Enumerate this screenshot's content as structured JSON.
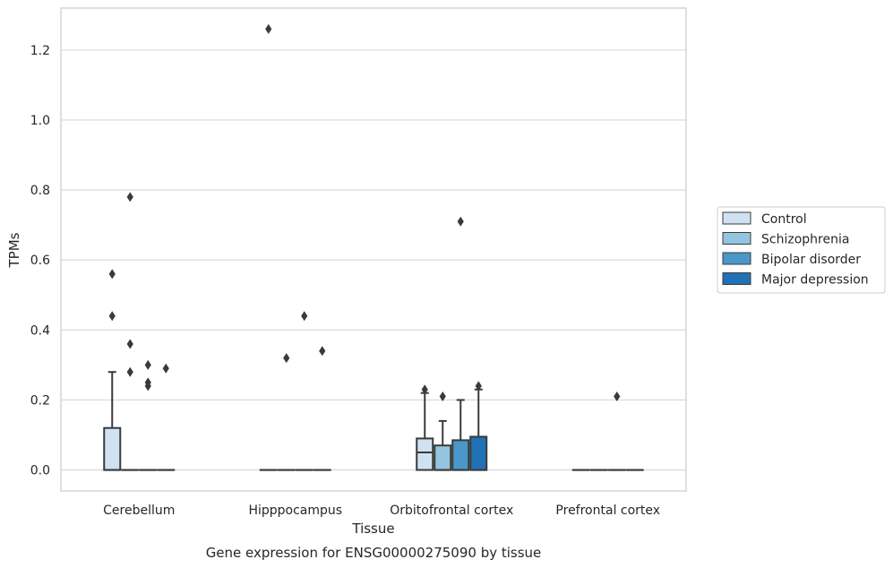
{
  "caption": "Gene expression for ENSG00000275090 by tissue",
  "chart_data": {
    "type": "box",
    "xlabel": "Tissue",
    "ylabel": "TPMs",
    "ylim": [
      -0.06,
      1.32
    ],
    "yticks": [
      0.0,
      0.2,
      0.4,
      0.6,
      0.8,
      1.0,
      1.2
    ],
    "ytick_labels": [
      "0.0",
      "0.2",
      "0.4",
      "0.6",
      "0.8",
      "1.0",
      "1.2"
    ],
    "grid": "horizontal",
    "legend_position": "right",
    "categories": [
      "Cerebellum",
      "Hipppocampus",
      "Orbitofrontal cortex",
      "Prefrontal cortex"
    ],
    "series": [
      {
        "name": "Control",
        "color": "#d0e1f2",
        "boxes": [
          {
            "q1": 0.0,
            "median": 0.0,
            "q3": 0.12,
            "whisker_low": 0.0,
            "whisker_high": 0.28,
            "outliers": [
              0.44,
              0.56
            ]
          },
          {
            "q1": 0.0,
            "median": 0.0,
            "q3": 0.0,
            "whisker_low": 0.0,
            "whisker_high": 0.0,
            "outliers": [
              1.26
            ]
          },
          {
            "q1": 0.0,
            "median": 0.05,
            "q3": 0.09,
            "whisker_low": 0.0,
            "whisker_high": 0.22,
            "outliers": [
              0.23
            ]
          },
          {
            "q1": 0.0,
            "median": 0.0,
            "q3": 0.0,
            "whisker_low": 0.0,
            "whisker_high": 0.0,
            "outliers": []
          }
        ]
      },
      {
        "name": "Schizophrenia",
        "color": "#94c4df",
        "boxes": [
          {
            "q1": 0.0,
            "median": 0.0,
            "q3": 0.0,
            "whisker_low": 0.0,
            "whisker_high": 0.0,
            "outliers": [
              0.28,
              0.36,
              0.78
            ]
          },
          {
            "q1": 0.0,
            "median": 0.0,
            "q3": 0.0,
            "whisker_low": 0.0,
            "whisker_high": 0.0,
            "outliers": [
              0.32
            ]
          },
          {
            "q1": 0.0,
            "median": 0.0,
            "q3": 0.07,
            "whisker_low": 0.0,
            "whisker_high": 0.14,
            "outliers": [
              0.21
            ]
          },
          {
            "q1": 0.0,
            "median": 0.0,
            "q3": 0.0,
            "whisker_low": 0.0,
            "whisker_high": 0.0,
            "outliers": []
          }
        ]
      },
      {
        "name": "Bipolar disorder",
        "color": "#4a98c9",
        "boxes": [
          {
            "q1": 0.0,
            "median": 0.0,
            "q3": 0.0,
            "whisker_low": 0.0,
            "whisker_high": 0.0,
            "outliers": [
              0.24,
              0.25,
              0.3
            ]
          },
          {
            "q1": 0.0,
            "median": 0.0,
            "q3": 0.0,
            "whisker_low": 0.0,
            "whisker_high": 0.0,
            "outliers": [
              0.44
            ]
          },
          {
            "q1": 0.0,
            "median": 0.0,
            "q3": 0.085,
            "whisker_low": 0.0,
            "whisker_high": 0.2,
            "outliers": [
              0.71
            ]
          },
          {
            "q1": 0.0,
            "median": 0.0,
            "q3": 0.0,
            "whisker_low": 0.0,
            "whisker_high": 0.0,
            "outliers": [
              0.21
            ]
          }
        ]
      },
      {
        "name": "Major depression",
        "color": "#2171b5",
        "boxes": [
          {
            "q1": 0.0,
            "median": 0.0,
            "q3": 0.0,
            "whisker_low": 0.0,
            "whisker_high": 0.0,
            "outliers": [
              0.29
            ]
          },
          {
            "q1": 0.0,
            "median": 0.0,
            "q3": 0.0,
            "whisker_low": 0.0,
            "whisker_high": 0.0,
            "outliers": [
              0.34
            ]
          },
          {
            "q1": 0.0,
            "median": 0.0,
            "q3": 0.095,
            "whisker_low": 0.0,
            "whisker_high": 0.23,
            "outliers": [
              0.24
            ]
          },
          {
            "q1": 0.0,
            "median": 0.0,
            "q3": 0.0,
            "whisker_low": 0.0,
            "whisker_high": 0.0,
            "outliers": []
          }
        ]
      }
    ]
  }
}
